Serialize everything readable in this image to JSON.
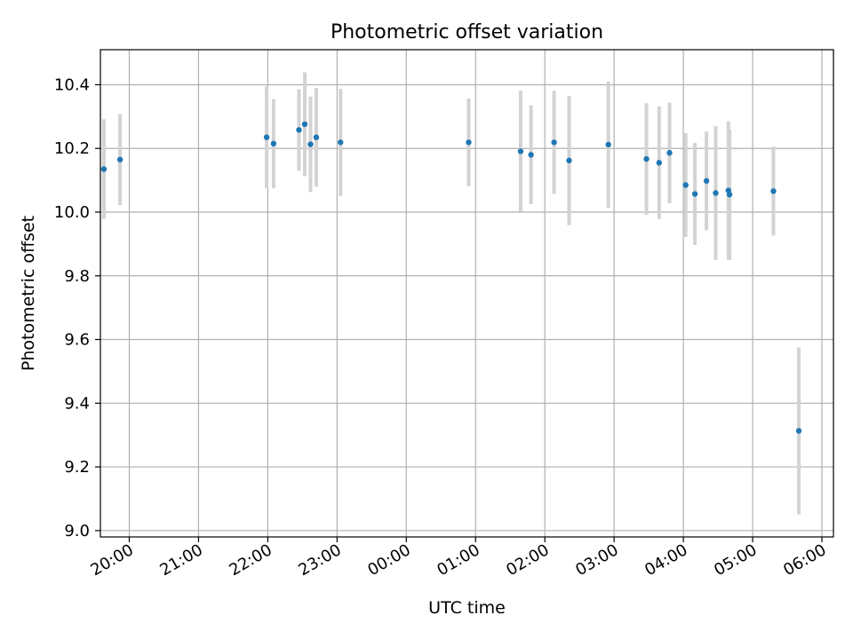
{
  "chart_data": {
    "type": "scatter",
    "title": "Photometric offset variation",
    "xlabel": "UTC time",
    "ylabel": "Photometric offset",
    "x_axis": "time",
    "xlim": [
      "19:35",
      "06:10"
    ],
    "ylim": [
      8.98,
      10.51
    ],
    "x_ticks": [
      "20:00",
      "21:00",
      "22:00",
      "23:00",
      "00:00",
      "01:00",
      "02:00",
      "03:00",
      "04:00",
      "05:00",
      "06:00"
    ],
    "y_ticks": [
      "9.0",
      "9.2",
      "9.4",
      "9.6",
      "9.8",
      "10.0",
      "10.2",
      "10.4"
    ],
    "grid": true,
    "marker_color": "#1f77b4",
    "errorbar_color": "#d3d3d3",
    "series": [
      {
        "points": [
          {
            "x": "19:38",
            "y": 10.135,
            "err": 0.157
          },
          {
            "x": "19:52",
            "y": 10.165,
            "err": 0.143
          },
          {
            "x": "21:59",
            "y": 10.235,
            "err": 0.16
          },
          {
            "x": "22:05",
            "y": 10.215,
            "err": 0.14
          },
          {
            "x": "22:27",
            "y": 10.258,
            "err": 0.128
          },
          {
            "x": "22:32",
            "y": 10.276,
            "err": 0.163
          },
          {
            "x": "22:37",
            "y": 10.213,
            "err": 0.15
          },
          {
            "x": "22:42",
            "y": 10.235,
            "err": 0.155
          },
          {
            "x": "23:03",
            "y": 10.219,
            "err": 0.168
          },
          {
            "x": "00:54",
            "y": 10.219,
            "err": 0.138
          },
          {
            "x": "01:39",
            "y": 10.191,
            "err": 0.19
          },
          {
            "x": "01:48",
            "y": 10.18,
            "err": 0.155
          },
          {
            "x": "02:08",
            "y": 10.219,
            "err": 0.162
          },
          {
            "x": "02:21",
            "y": 10.162,
            "err": 0.203
          },
          {
            "x": "02:55",
            "y": 10.212,
            "err": 0.198
          },
          {
            "x": "03:28",
            "y": 10.167,
            "err": 0.175
          },
          {
            "x": "03:39",
            "y": 10.155,
            "err": 0.177
          },
          {
            "x": "03:48",
            "y": 10.186,
            "err": 0.158
          },
          {
            "x": "04:02",
            "y": 10.085,
            "err": 0.163
          },
          {
            "x": "04:10",
            "y": 10.057,
            "err": 0.16
          },
          {
            "x": "04:20",
            "y": 10.098,
            "err": 0.155
          },
          {
            "x": "04:28",
            "y": 10.06,
            "err": 0.21
          },
          {
            "x": "04:39",
            "y": 10.068,
            "err": 0.217
          },
          {
            "x": "04:40",
            "y": 10.055,
            "err": 0.205
          },
          {
            "x": "05:18",
            "y": 10.066,
            "err": 0.14
          },
          {
            "x": "05:40",
            "y": 9.313,
            "err": 0.262
          }
        ]
      }
    ]
  }
}
